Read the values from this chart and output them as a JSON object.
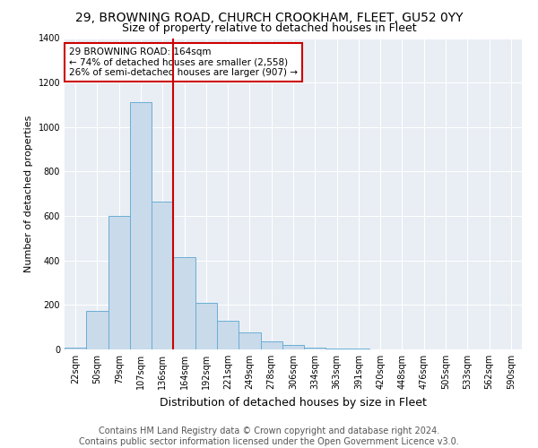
{
  "title": "29, BROWNING ROAD, CHURCH CROOKHAM, FLEET, GU52 0YY",
  "subtitle": "Size of property relative to detached houses in Fleet",
  "xlabel": "Distribution of detached houses by size in Fleet",
  "ylabel": "Number of detached properties",
  "categories": [
    "22sqm",
    "50sqm",
    "79sqm",
    "107sqm",
    "136sqm",
    "164sqm",
    "192sqm",
    "221sqm",
    "249sqm",
    "278sqm",
    "306sqm",
    "334sqm",
    "363sqm",
    "391sqm",
    "420sqm",
    "448sqm",
    "476sqm",
    "505sqm",
    "533sqm",
    "562sqm",
    "590sqm"
  ],
  "values": [
    10,
    175,
    600,
    1110,
    665,
    415,
    210,
    130,
    75,
    35,
    20,
    10,
    5,
    5,
    2,
    2,
    1,
    0,
    0,
    0,
    0
  ],
  "bar_color": "#c9daea",
  "bar_edge_color": "#6aaed6",
  "highlight_index": 5,
  "highlight_line_color": "#cc0000",
  "annotation_text": "29 BROWNING ROAD: 164sqm\n← 74% of detached houses are smaller (2,558)\n26% of semi-detached houses are larger (907) →",
  "annotation_box_color": "#ffffff",
  "annotation_box_edge": "#cc0000",
  "ylim": [
    0,
    1400
  ],
  "yticks": [
    0,
    200,
    400,
    600,
    800,
    1000,
    1200,
    1400
  ],
  "bg_color": "#ffffff",
  "plot_bg_color": "#e8eef4",
  "grid_color": "#ffffff",
  "title_fontsize": 10,
  "subtitle_fontsize": 9,
  "axis_label_fontsize": 8,
  "tick_fontsize": 7,
  "footer_fontsize": 7,
  "footer_line1": "Contains HM Land Registry data © Crown copyright and database right 2024.",
  "footer_line2": "Contains public sector information licensed under the Open Government Licence v3.0."
}
